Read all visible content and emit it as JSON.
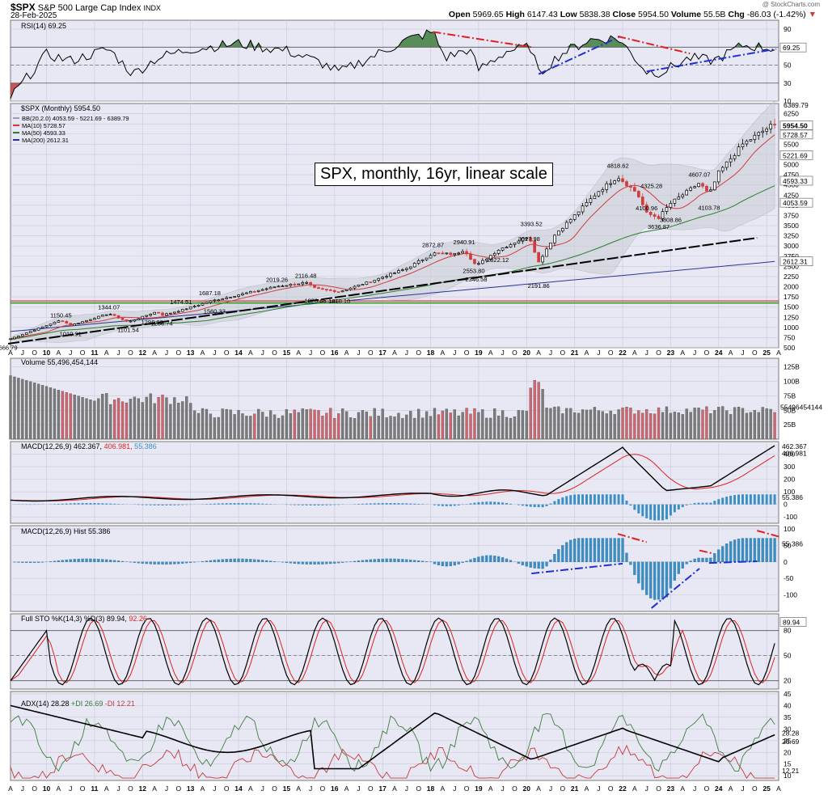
{
  "header": {
    "ticker": "$SPX",
    "name": "S&P 500 Large Cap Index",
    "exchange": "INDX",
    "date": "28-Feb-2025",
    "watermark": "@ StockCharts.com",
    "quote": {
      "open_label": "Open",
      "open": "5969.65",
      "high_label": "High",
      "high": "6147.43",
      "low_label": "Low",
      "low": "5838.38",
      "close_label": "Close",
      "close": "5954.50",
      "volume_label": "Volume",
      "volume": "55.5B",
      "chg_label": "Chg",
      "chg": "-86.03 (-1.42%)"
    }
  },
  "annotation": "SPX, monthly, 16yr, linear scale",
  "colors": {
    "up": "#000000",
    "down": "#d33b3b",
    "ma10": "#d33b3b",
    "ma50": "#2e7d32",
    "ma200": "#283593",
    "macd_hist": "#3b8fc4",
    "green_line": "#1a9c1a",
    "panel_bg": "#e8e8f4"
  },
  "chart_data": [
    {
      "type": "line",
      "panel": "RSI",
      "legend": "RSI(14) 69.25",
      "current": "69.25",
      "ylim": [
        10,
        100
      ],
      "ticks": [
        "90",
        "70",
        "50",
        "30",
        "10"
      ],
      "x": [
        2009.25,
        2010,
        2010.5,
        2011.3,
        2011.8,
        2012.3,
        2013,
        2014,
        2015,
        2015.7,
        2016.1,
        2016.8,
        2017.5,
        2018.05,
        2018.3,
        2018.8,
        2019,
        2019.6,
        2020.1,
        2020.25,
        2020.7,
        2021.3,
        2021.9,
        2022.5,
        2022.8,
        2023.4,
        2023.9,
        2024.5,
        2025.1
      ],
      "values": [
        14,
        62,
        55,
        68,
        40,
        58,
        68,
        74,
        66,
        53,
        42,
        60,
        78,
        87,
        58,
        68,
        45,
        66,
        70,
        40,
        62,
        78,
        80,
        43,
        42,
        58,
        55,
        72,
        69
      ],
      "trend_lines": [
        {
          "color": "red",
          "from": [
            2018.05,
            87
          ],
          "to": [
            2020.1,
            70
          ]
        },
        {
          "color": "blue",
          "from": [
            2020.25,
            40
          ],
          "to": [
            2021.95,
            82
          ]
        },
        {
          "color": "red",
          "from": [
            2021.9,
            82
          ],
          "to": [
            2023.4,
            63
          ]
        },
        {
          "color": "blue",
          "from": [
            2022.5,
            43
          ],
          "to": [
            2025.2,
            68
          ]
        }
      ]
    },
    {
      "type": "candlestick",
      "panel": "Price",
      "legend": "$SPX (Monthly) 5954.50",
      "indicators": [
        {
          "name": "BB(20,2.0) 4053.59 - 5221.69 - 6389.79"
        },
        {
          "name": "MA(10) 5728.57"
        },
        {
          "name": "MA(50) 4593.33"
        },
        {
          "name": "MA(200) 2612.31"
        }
      ],
      "ylim": [
        500,
        6500
      ],
      "ticks": [
        "6250",
        "6000",
        "5750",
        "5500",
        "5250",
        "5000",
        "4750",
        "4500",
        "4250",
        "4000",
        "3750",
        "3500",
        "3250",
        "3000",
        "2750",
        "2500",
        "2250",
        "2000",
        "1750",
        "1500",
        "1250",
        "1000",
        "750",
        "500"
      ],
      "right_labels": [
        "6389.79",
        "5954.50",
        "5728.57",
        "5221.69",
        "4593.33",
        "4053.59",
        "2612.31"
      ],
      "data_labels": [
        "666.79",
        "1150.45",
        "1010.91",
        "1344.07",
        "1292.66",
        "1101.54",
        "1474.51",
        "1266.74",
        "1687.18",
        "1560.33",
        "2019.26",
        "1820.66",
        "2116.48",
        "1810.10",
        "2872.87",
        "2553.80",
        "2940.91",
        "2346.58",
        "3027.98",
        "2822.12",
        "3393.52",
        "2191.86",
        "4818.62",
        "3636.87",
        "4325.28",
        "4100.96",
        "3808.86",
        "4607.07",
        "4103.78"
      ],
      "x": [
        2009.2,
        2010.3,
        2010.5,
        2011.3,
        2012.2,
        2011.7,
        2012.8,
        2012.4,
        2013.4,
        2013.5,
        2014.8,
        2015.6,
        2015.4,
        2016.1,
        2018.05,
        2018.9,
        2018.7,
        2018.95,
        2020.05,
        2019.4,
        2020.1,
        2020.25,
        2021.9,
        2022.75,
        2022.6,
        2022.5,
        2023.0,
        2023.6,
        2023.8
      ],
      "values": [
        666.79,
        1150.45,
        1010.91,
        1344.07,
        1292.66,
        1101.54,
        1474.51,
        1266.74,
        1687.18,
        1560.33,
        2019.26,
        1820.66,
        2116.48,
        1810.1,
        2872.87,
        2553.8,
        2940.91,
        2346.58,
        3027.98,
        2822.12,
        3393.52,
        2191.86,
        4818.62,
        3636.87,
        4325.28,
        4100.96,
        3808.86,
        4607.07,
        4103.78
      ],
      "horizontal_line": 1600,
      "trend_line": {
        "from": [
          2009.2,
          600
        ],
        "to": [
          2024.8,
          3200
        ]
      },
      "last_close": 5954.5
    },
    {
      "type": "bar",
      "panel": "Volume",
      "legend": "Volume 55,496,454,144",
      "ylim": [
        0,
        140
      ],
      "ticks": [
        "125B",
        "100B",
        "75B",
        "50B",
        "25B"
      ],
      "right_label": "55496454144"
    },
    {
      "type": "line",
      "panel": "MACD",
      "legend_label": "MACD(12,26,9) 462.367,",
      "legend_signal": "406.981,",
      "legend_hist": "55.386",
      "ylim": [
        -150,
        500
      ],
      "ticks": [
        "400",
        "300",
        "200",
        "100",
        "0",
        "-100"
      ],
      "right_labels": [
        "462.367",
        "406.981",
        "55.386"
      ]
    },
    {
      "type": "bar",
      "panel": "MACD Hist",
      "legend": "MACD(12,26,9) Hist 55.386",
      "ylim": [
        -150,
        110
      ],
      "ticks": [
        "100",
        "50",
        "0",
        "-50",
        "-100"
      ],
      "right_label": "55.386"
    },
    {
      "type": "line",
      "panel": "Full STO",
      "legend_label": "Full STO %K(14,3) %D(3) 89.94,",
      "legend_d": "92.26",
      "ylim": [
        10,
        100
      ],
      "ticks": [
        "80",
        "50",
        "20"
      ],
      "right_label": "89.94"
    },
    {
      "type": "line",
      "panel": "ADX",
      "legend_label": "ADX(14) 28.28",
      "legend_pdi": "+DI 26.69",
      "legend_mdi": "-DI 12.21",
      "ylim": [
        8,
        46
      ],
      "ticks": [
        "45",
        "40",
        "35",
        "30",
        "25",
        "20",
        "15",
        "10"
      ],
      "right_labels": [
        "28.28",
        "26.69",
        "12.21"
      ]
    }
  ],
  "xaxis": {
    "labels": [
      "A",
      "J",
      "O",
      "10",
      "A",
      "J",
      "O",
      "11",
      "A",
      "J",
      "O",
      "12",
      "A",
      "J",
      "O",
      "13",
      "A",
      "J",
      "O",
      "14",
      "A",
      "J",
      "O",
      "15",
      "A",
      "J",
      "O",
      "16",
      "A",
      "J",
      "O",
      "17",
      "A",
      "J",
      "O",
      "18",
      "A",
      "J",
      "O",
      "19",
      "A",
      "J",
      "O",
      "20",
      "A",
      "J",
      "O",
      "21",
      "A",
      "J",
      "O",
      "22",
      "A",
      "J",
      "O",
      "23",
      "A",
      "J",
      "O",
      "24",
      "A",
      "J",
      "O",
      "25",
      "A"
    ],
    "start": 2009.25,
    "end": 2025.25
  }
}
